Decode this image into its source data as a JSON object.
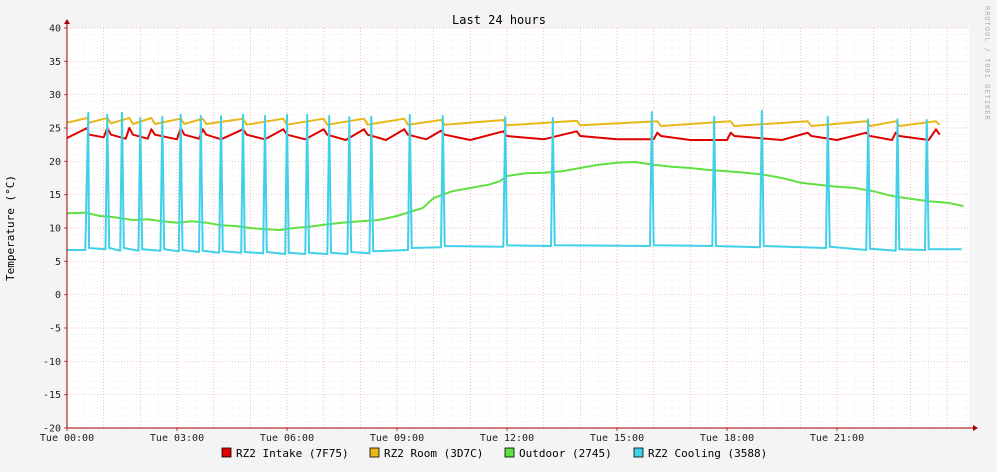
{
  "chart_data": {
    "type": "line",
    "title": "Last 24 hours",
    "ylabel": "Temperature (°C)",
    "watermark": "RRDTOOL / TOBI OETIKER",
    "xlim": [
      0,
      24.6
    ],
    "ylim": [
      -20,
      40
    ],
    "y_ticks": [
      40,
      35,
      30,
      25,
      20,
      15,
      10,
      5,
      0,
      -5,
      -10,
      -15,
      -20
    ],
    "x_ticks": [
      {
        "hour": 0,
        "label": "Tue 00:00"
      },
      {
        "hour": 3,
        "label": "Tue 03:00"
      },
      {
        "hour": 6,
        "label": "Tue 06:00"
      },
      {
        "hour": 9,
        "label": "Tue 09:00"
      },
      {
        "hour": 12,
        "label": "Tue 12:00"
      },
      {
        "hour": 15,
        "label": "Tue 15:00"
      },
      {
        "hour": 18,
        "label": "Tue 18:00"
      },
      {
        "hour": 21,
        "label": "Tue 21:00"
      }
    ],
    "grid": true,
    "legend_position": "bottom",
    "series": [
      {
        "name": "RZ2 Intake (7F75)",
        "color": "#e00000",
        "points": [
          [
            0,
            23.5
          ],
          [
            0.55,
            25
          ],
          [
            0.6,
            24
          ],
          [
            1,
            23.6
          ],
          [
            1.1,
            25
          ],
          [
            1.2,
            24
          ],
          [
            1.6,
            23.4
          ],
          [
            1.7,
            25
          ],
          [
            1.8,
            24
          ],
          [
            2.2,
            23.4
          ],
          [
            2.3,
            24.8
          ],
          [
            2.4,
            24
          ],
          [
            3.0,
            23.3
          ],
          [
            3.1,
            25
          ],
          [
            3.2,
            24
          ],
          [
            3.6,
            23.4
          ],
          [
            3.7,
            24.8
          ],
          [
            3.8,
            24
          ],
          [
            4.2,
            23.3
          ],
          [
            4.8,
            24.8
          ],
          [
            4.9,
            24
          ],
          [
            5.4,
            23.3
          ],
          [
            5.9,
            24.8
          ],
          [
            6.0,
            24
          ],
          [
            6.5,
            23.3
          ],
          [
            7.0,
            24.8
          ],
          [
            7.1,
            24
          ],
          [
            7.6,
            23.2
          ],
          [
            8.1,
            24.8
          ],
          [
            8.2,
            24
          ],
          [
            8.7,
            23.2
          ],
          [
            9.2,
            24.8
          ],
          [
            9.3,
            24
          ],
          [
            9.8,
            23.3
          ],
          [
            10.2,
            24.6
          ],
          [
            10.3,
            24
          ],
          [
            11.0,
            23.2
          ],
          [
            11.9,
            24.5
          ],
          [
            12.0,
            23.8
          ],
          [
            13.0,
            23.3
          ],
          [
            13.9,
            24.5
          ],
          [
            14.0,
            23.8
          ],
          [
            15.0,
            23.3
          ],
          [
            16.0,
            23.3
          ],
          [
            16.1,
            24.3
          ],
          [
            16.2,
            23.8
          ],
          [
            17.0,
            23.2
          ],
          [
            18.0,
            23.2
          ],
          [
            18.1,
            24.3
          ],
          [
            18.2,
            23.8
          ],
          [
            19.5,
            23.2
          ],
          [
            20.2,
            24.3
          ],
          [
            20.3,
            23.8
          ],
          [
            21.0,
            23.2
          ],
          [
            21.8,
            24.3
          ],
          [
            21.9,
            23.8
          ],
          [
            22.5,
            23.2
          ],
          [
            22.6,
            24.3
          ],
          [
            22.7,
            23.8
          ],
          [
            23.5,
            23.2
          ],
          [
            23.7,
            24.8
          ],
          [
            23.8,
            24
          ]
        ]
      },
      {
        "name": "RZ2 Room (3D7C)",
        "color": "#e8b818",
        "points": [
          [
            0,
            25.8
          ],
          [
            0.55,
            26.5
          ],
          [
            0.6,
            25.8
          ],
          [
            1.1,
            26.5
          ],
          [
            1.2,
            25.7
          ],
          [
            1.7,
            26.5
          ],
          [
            1.8,
            25.6
          ],
          [
            2.3,
            26.5
          ],
          [
            2.4,
            25.6
          ],
          [
            3.1,
            26.4
          ],
          [
            3.2,
            25.6
          ],
          [
            3.7,
            26.4
          ],
          [
            3.8,
            25.6
          ],
          [
            4.8,
            26.4
          ],
          [
            4.9,
            25.5
          ],
          [
            5.9,
            26.4
          ],
          [
            6.0,
            25.5
          ],
          [
            7.0,
            26.4
          ],
          [
            7.1,
            25.5
          ],
          [
            8.1,
            26.4
          ],
          [
            8.2,
            25.5
          ],
          [
            9.2,
            26.4
          ],
          [
            9.3,
            25.5
          ],
          [
            10.2,
            26.2
          ],
          [
            10.3,
            25.5
          ],
          [
            11.9,
            26.2
          ],
          [
            12.0,
            25.4
          ],
          [
            13.9,
            26.1
          ],
          [
            14.0,
            25.4
          ],
          [
            16.1,
            26
          ],
          [
            16.2,
            25.3
          ],
          [
            18.1,
            26
          ],
          [
            18.2,
            25.3
          ],
          [
            20.2,
            26
          ],
          [
            20.3,
            25.3
          ],
          [
            21.8,
            26
          ],
          [
            21.9,
            25.3
          ],
          [
            22.6,
            26
          ],
          [
            22.7,
            25.3
          ],
          [
            23.7,
            26
          ],
          [
            23.8,
            25.5
          ]
        ]
      },
      {
        "name": "Outdoor (2745)",
        "color": "#60e040",
        "points": [
          [
            0,
            12.2
          ],
          [
            0.5,
            12.3
          ],
          [
            0.9,
            11.8
          ],
          [
            1.3,
            11.6
          ],
          [
            1.8,
            11.2
          ],
          [
            2.2,
            11.3
          ],
          [
            2.6,
            11
          ],
          [
            3.0,
            10.8
          ],
          [
            3.4,
            11
          ],
          [
            3.8,
            10.8
          ],
          [
            4.2,
            10.4
          ],
          [
            4.6,
            10.3
          ],
          [
            5.0,
            10.0
          ],
          [
            5.4,
            9.8
          ],
          [
            5.8,
            9.7
          ],
          [
            6.2,
            10.0
          ],
          [
            6.6,
            10.2
          ],
          [
            7.0,
            10.5
          ],
          [
            7.5,
            10.8
          ],
          [
            8.0,
            11.0
          ],
          [
            8.5,
            11.2
          ],
          [
            9.0,
            11.8
          ],
          [
            9.4,
            12.5
          ],
          [
            9.7,
            13.0
          ],
          [
            10.0,
            14.5
          ],
          [
            10.5,
            15.5
          ],
          [
            11.0,
            16.0
          ],
          [
            11.5,
            16.5
          ],
          [
            11.8,
            17.0
          ],
          [
            12.0,
            17.8
          ],
          [
            12.5,
            18.2
          ],
          [
            13.0,
            18.3
          ],
          [
            13.5,
            18.5
          ],
          [
            14.0,
            19.0
          ],
          [
            14.5,
            19.5
          ],
          [
            15.0,
            19.8
          ],
          [
            15.5,
            19.9
          ],
          [
            16.0,
            19.5
          ],
          [
            16.5,
            19.2
          ],
          [
            17.0,
            19.0
          ],
          [
            17.5,
            18.7
          ],
          [
            18.0,
            18.5
          ],
          [
            18.5,
            18.3
          ],
          [
            19.0,
            18.0
          ],
          [
            19.5,
            17.5
          ],
          [
            20.0,
            16.8
          ],
          [
            20.5,
            16.5
          ],
          [
            21.0,
            16.2
          ],
          [
            21.5,
            16.0
          ],
          [
            22.0,
            15.5
          ],
          [
            22.5,
            14.8
          ],
          [
            23.0,
            14.4
          ],
          [
            23.5,
            14.0
          ],
          [
            24.0,
            13.8
          ],
          [
            24.45,
            13.3
          ]
        ]
      },
      {
        "name": "RZ2 Cooling (3588)",
        "color": "#40d0e8",
        "points": [
          [
            0,
            6.7
          ],
          [
            0.5,
            6.7
          ],
          [
            0.58,
            27.3
          ],
          [
            0.6,
            7
          ],
          [
            1.05,
            6.8
          ],
          [
            1.1,
            27
          ],
          [
            1.15,
            7
          ],
          [
            1.45,
            6.6
          ],
          [
            1.5,
            27.3
          ],
          [
            1.55,
            7
          ],
          [
            1.95,
            6.6
          ],
          [
            2.0,
            26.5
          ],
          [
            2.05,
            6.8
          ],
          [
            2.55,
            6.6
          ],
          [
            2.6,
            26.7
          ],
          [
            2.65,
            6.8
          ],
          [
            3.05,
            6.5
          ],
          [
            3.1,
            27
          ],
          [
            3.15,
            6.7
          ],
          [
            3.6,
            6.4
          ],
          [
            3.65,
            26.8
          ],
          [
            3.7,
            6.6
          ],
          [
            4.15,
            6.3
          ],
          [
            4.2,
            26.8
          ],
          [
            4.25,
            6.5
          ],
          [
            4.75,
            6.3
          ],
          [
            4.8,
            27
          ],
          [
            4.85,
            6.4
          ],
          [
            5.35,
            6.2
          ],
          [
            5.4,
            26.8
          ],
          [
            5.45,
            6.4
          ],
          [
            5.95,
            6.1
          ],
          [
            6.0,
            27
          ],
          [
            6.05,
            6.3
          ],
          [
            6.5,
            6.1
          ],
          [
            6.55,
            27
          ],
          [
            6.6,
            6.3
          ],
          [
            7.1,
            6.1
          ],
          [
            7.15,
            26.8
          ],
          [
            7.2,
            6.3
          ],
          [
            7.65,
            6.1
          ],
          [
            7.7,
            26.6
          ],
          [
            7.75,
            6.4
          ],
          [
            8.25,
            6.2
          ],
          [
            8.3,
            26.7
          ],
          [
            8.35,
            6.5
          ],
          [
            9.3,
            6.7
          ],
          [
            9.35,
            27
          ],
          [
            9.4,
            7
          ],
          [
            10.2,
            7.1
          ],
          [
            10.25,
            26.8
          ],
          [
            10.3,
            7.3
          ],
          [
            11.9,
            7.2
          ],
          [
            11.95,
            26.6
          ],
          [
            12.0,
            7.4
          ],
          [
            13.2,
            7.3
          ],
          [
            13.25,
            26.5
          ],
          [
            13.3,
            7.4
          ],
          [
            15.9,
            7.3
          ],
          [
            15.95,
            27.4
          ],
          [
            16.0,
            7.4
          ],
          [
            17.6,
            7.3
          ],
          [
            17.65,
            26.7
          ],
          [
            17.7,
            7.3
          ],
          [
            18.9,
            7.1
          ],
          [
            18.95,
            27.6
          ],
          [
            19.0,
            7.3
          ],
          [
            20.7,
            7.0
          ],
          [
            20.75,
            26.7
          ],
          [
            20.8,
            7.2
          ],
          [
            21.8,
            6.7
          ],
          [
            21.85,
            26.3
          ],
          [
            21.9,
            6.9
          ],
          [
            22.6,
            6.6
          ],
          [
            22.65,
            26.3
          ],
          [
            22.7,
            6.8
          ],
          [
            23.4,
            6.7
          ],
          [
            23.45,
            26.2
          ],
          [
            23.5,
            6.8
          ],
          [
            24.4,
            6.8
          ]
        ]
      }
    ]
  }
}
